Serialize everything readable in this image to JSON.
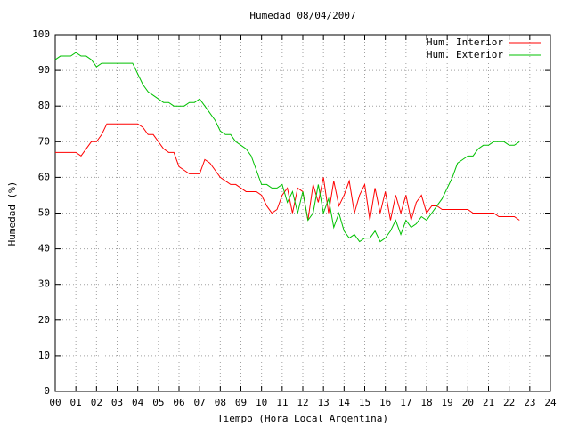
{
  "chart_data": {
    "type": "line",
    "title": "Humedad 08/04/2007",
    "x_label": "Tiempo (Hora Local Argentina)",
    "y_label": "Humedad (%)",
    "xlim": [
      0,
      24
    ],
    "ylim": [
      0,
      100
    ],
    "xticks": [
      {
        "value": 0,
        "label": "00"
      },
      {
        "value": 1,
        "label": "01"
      },
      {
        "value": 2,
        "label": "02"
      },
      {
        "value": 3,
        "label": "03"
      },
      {
        "value": 4,
        "label": "04"
      },
      {
        "value": 5,
        "label": "05"
      },
      {
        "value": 6,
        "label": "06"
      },
      {
        "value": 7,
        "label": "07"
      },
      {
        "value": 8,
        "label": "08"
      },
      {
        "value": 9,
        "label": "09"
      },
      {
        "value": 10,
        "label": "10"
      },
      {
        "value": 11,
        "label": "11"
      },
      {
        "value": 12,
        "label": "12"
      },
      {
        "value": 13,
        "label": "13"
      },
      {
        "value": 14,
        "label": "14"
      },
      {
        "value": 15,
        "label": "15"
      },
      {
        "value": 16,
        "label": "16"
      },
      {
        "value": 17,
        "label": "17"
      },
      {
        "value": 18,
        "label": "18"
      },
      {
        "value": 19,
        "label": "19"
      },
      {
        "value": 20,
        "label": "20"
      },
      {
        "value": 21,
        "label": "21"
      },
      {
        "value": 22,
        "label": "22"
      },
      {
        "value": 23,
        "label": "23"
      },
      {
        "value": 24,
        "label": "24"
      }
    ],
    "yticks": [
      0,
      10,
      20,
      30,
      40,
      50,
      60,
      70,
      80,
      90,
      100
    ],
    "grid": true,
    "legend": "top-right",
    "x": [
      0,
      0.25,
      0.5,
      0.75,
      1,
      1.25,
      1.5,
      1.75,
      2,
      2.25,
      2.5,
      2.75,
      3,
      3.25,
      3.5,
      3.75,
      4,
      4.25,
      4.5,
      4.75,
      5,
      5.25,
      5.5,
      5.75,
      6,
      6.25,
      6.5,
      6.75,
      7,
      7.25,
      7.5,
      7.75,
      8,
      8.25,
      8.5,
      8.75,
      9,
      9.25,
      9.5,
      9.75,
      10,
      10.25,
      10.5,
      10.75,
      11,
      11.25,
      11.5,
      11.75,
      12,
      12.25,
      12.5,
      12.75,
      13,
      13.25,
      13.5,
      13.75,
      14,
      14.25,
      14.5,
      14.75,
      15,
      15.25,
      15.5,
      15.75,
      16,
      16.25,
      16.5,
      16.75,
      17,
      17.25,
      17.5,
      17.75,
      18,
      18.25,
      18.5,
      18.75,
      19,
      19.25,
      19.5,
      19.75,
      20,
      20.25,
      20.5,
      20.75,
      21,
      21.25,
      21.5,
      21.75,
      22,
      22.25,
      22.5
    ],
    "series": [
      {
        "name": "Hum. Interior",
        "color": "#ff0000",
        "values": [
          67,
          67,
          67,
          67,
          67,
          66,
          68,
          70,
          70,
          72,
          75,
          75,
          75,
          75,
          75,
          75,
          75,
          74,
          72,
          72,
          70,
          68,
          67,
          67,
          63,
          62,
          61,
          61,
          61,
          65,
          64,
          62,
          60,
          59,
          58,
          58,
          57,
          56,
          56,
          56,
          55,
          52,
          50,
          51,
          55,
          57,
          50,
          57,
          56,
          48,
          58,
          53,
          60,
          50,
          59,
          52,
          55,
          59,
          50,
          55,
          58,
          48,
          57,
          50,
          56,
          48,
          55,
          50,
          55,
          48,
          53,
          55,
          50,
          52,
          52,
          51,
          51,
          51,
          51,
          51,
          51,
          50,
          50,
          50,
          50,
          50,
          49,
          49,
          49,
          49,
          48
        ]
      },
      {
        "name": "Hum. Exterior",
        "color": "#00c000",
        "values": [
          93,
          94,
          94,
          94,
          95,
          94,
          94,
          93,
          91,
          92,
          92,
          92,
          92,
          92,
          92,
          92,
          89,
          86,
          84,
          83,
          82,
          81,
          81,
          80,
          80,
          80,
          81,
          81,
          82,
          80,
          78,
          76,
          73,
          72,
          72,
          70,
          69,
          68,
          66,
          62,
          58,
          58,
          57,
          57,
          58,
          53,
          56,
          50,
          56,
          48,
          50,
          58,
          50,
          54,
          46,
          50,
          45,
          43,
          44,
          42,
          43,
          43,
          45,
          42,
          43,
          45,
          48,
          44,
          48,
          46,
          47,
          49,
          48,
          50,
          52,
          54,
          57,
          60,
          64,
          65,
          66,
          66,
          68,
          69,
          69,
          70,
          70,
          70,
          69,
          69,
          70
        ]
      }
    ]
  }
}
